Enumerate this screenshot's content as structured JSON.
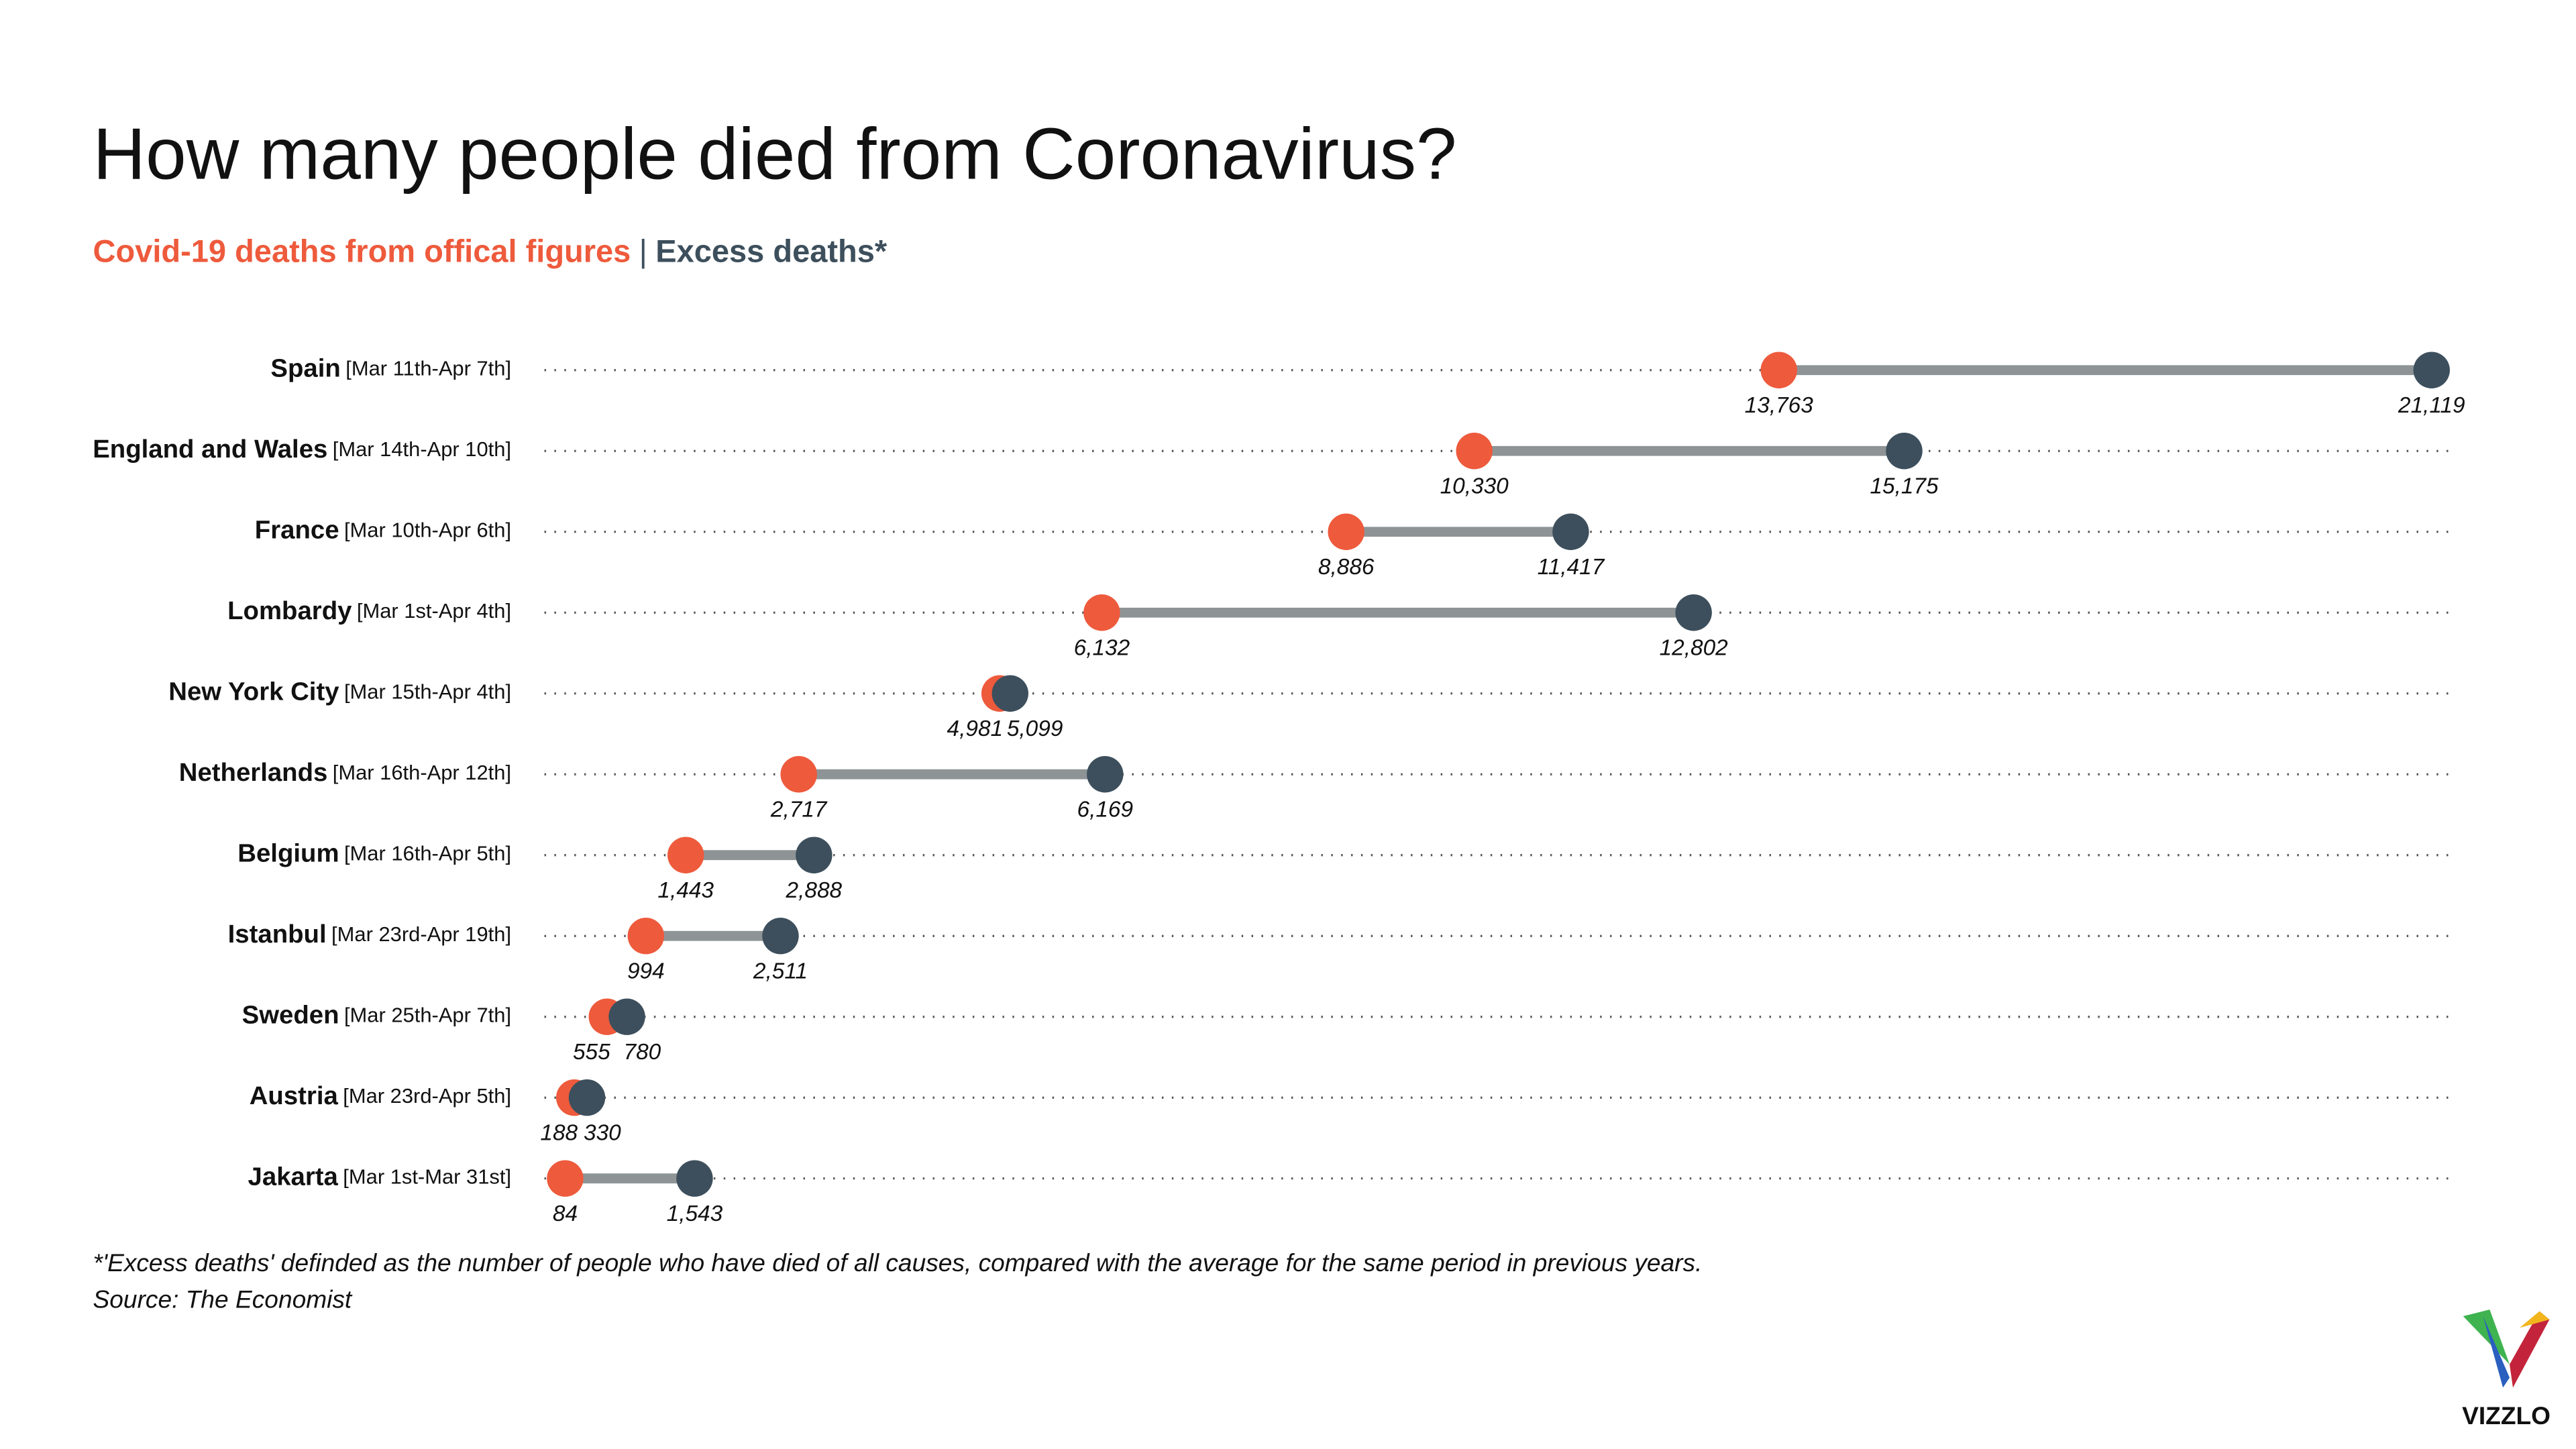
{
  "chart_data": {
    "type": "dumbbell",
    "title": "How many people died from Coronavirus?",
    "legend_separator": "|",
    "categories": [
      "Spain",
      "England and Wales",
      "France",
      "Lombardy",
      "New York City",
      "Netherlands",
      "Belgium",
      "Istanbul",
      "Sweden",
      "Austria",
      "Jakarta"
    ],
    "periods": [
      "[Mar 11th-Apr 7th]",
      "[Mar 14th-Apr 10th]",
      "[Mar 10th-Apr 6th]",
      "[Mar 1st-Apr 4th]",
      "[Mar 15th-Apr 4th]",
      "[Mar 16th-Apr 12th]",
      "[Mar 16th-Apr 5th]",
      "[Mar 23rd-Apr 19th]",
      "[Mar 25th-Apr 7th]",
      "[Mar 23rd-Apr 5th]",
      "[Mar 1st-Mar 31st]"
    ],
    "series": [
      {
        "name": "Covid-19 deaths from offical figures",
        "color": "#ee5a3c",
        "values": [
          13763,
          10330,
          8886,
          6132,
          4981,
          2717,
          1443,
          994,
          555,
          188,
          84
        ],
        "value_labels": [
          "13,763",
          "10,330",
          "8,886",
          "6,132",
          "4,981",
          "2,717",
          "1,443",
          "994",
          "555",
          "188",
          "84"
        ]
      },
      {
        "name": "Excess deaths*",
        "color": "#3d4f5c",
        "values": [
          21119,
          15175,
          11417,
          12802,
          5099,
          6169,
          2888,
          2511,
          780,
          330,
          1543
        ],
        "value_labels": [
          "21,119",
          "15,175",
          "11,417",
          "12,802",
          "5,099",
          "6,169",
          "2,888",
          "2,511",
          "780",
          "330",
          "1,543"
        ]
      }
    ],
    "connector_color": "#8e9496",
    "xlim": [
      0,
      21119
    ],
    "footnotes": [
      "*'Excess deaths' definded as the number of people who have died of all causes, compared with the average for the same period in previous years.",
      "Source: The Economist"
    ],
    "logo": "VIZZLO"
  }
}
